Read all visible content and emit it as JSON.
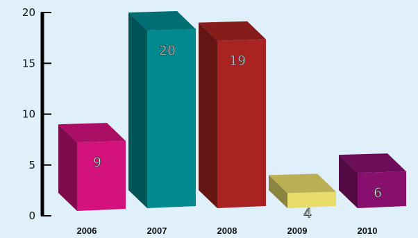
{
  "chart_data": {
    "type": "bar",
    "style": "3d",
    "categories": [
      "2006",
      "2007",
      "2008",
      "2009",
      "2010"
    ],
    "values": [
      9,
      20,
      19,
      4,
      6
    ],
    "ylim": [
      0,
      20
    ],
    "yticks": [
      0,
      5,
      10,
      15,
      20
    ],
    "grid": false,
    "title": "",
    "xlabel": "",
    "ylabel": "",
    "colors": [
      "#d4127e",
      "#008a8f",
      "#a82422",
      "#e8db6a",
      "#87106f"
    ]
  }
}
